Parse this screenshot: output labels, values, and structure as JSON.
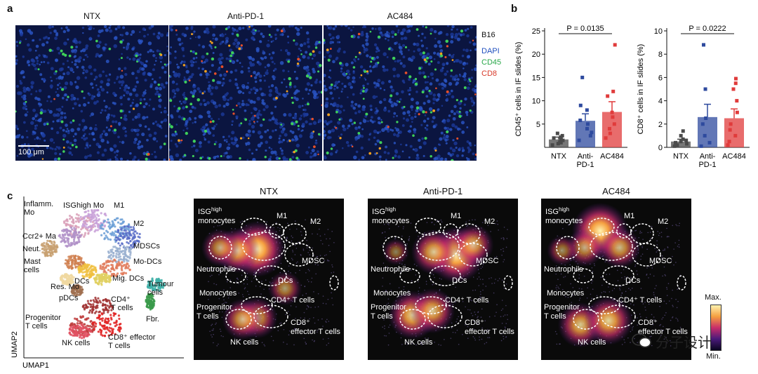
{
  "panels": {
    "a": "a",
    "b": "b",
    "c": "c"
  },
  "panel_a": {
    "conditions": [
      "NTX",
      "Anti-PD-1",
      "AC484"
    ],
    "scale_bar": "100 μm",
    "legend": {
      "title": "B16",
      "channels": [
        {
          "label": "DAPI",
          "color": "#1f4fbf"
        },
        {
          "label": "CD45",
          "color": "#2aa84a"
        },
        {
          "label": "CD8",
          "color": "#d83a2a"
        }
      ]
    }
  },
  "chart_data": [
    {
      "type": "bar",
      "categories": [
        "NTX",
        "Anti-PD-1",
        "AC484"
      ],
      "category_lines": [
        [
          "NTX"
        ],
        [
          "Anti-",
          "PD-1"
        ],
        [
          "AC484"
        ]
      ],
      "values": [
        1.7,
        5.7,
        7.6
      ],
      "errors": [
        0.5,
        1.5,
        2.2
      ],
      "points": [
        [
          0.5,
          0.8,
          1.0,
          1.2,
          1.5,
          1.8,
          2.0,
          2.2,
          2.5,
          3.0
        ],
        [
          1.5,
          2.5,
          3.2,
          4.0,
          5.0,
          5.8,
          8.0,
          9.0,
          15.0
        ],
        [
          2.0,
          3.0,
          4.0,
          5.0,
          6.5,
          7.5,
          11.0,
          12.0,
          22.0
        ]
      ],
      "colors": [
        "#4a4a4a",
        "#2e4a9e",
        "#e03b3b"
      ],
      "ylabel": "CD45⁺ cells in IF slides (%)",
      "yticks": [
        5,
        10,
        15,
        20,
        25
      ],
      "ylim": [
        0,
        25
      ],
      "annotation": "P = 0.0135"
    },
    {
      "type": "bar",
      "categories": [
        "NTX",
        "Anti-PD-1",
        "AC484"
      ],
      "category_lines": [
        [
          "NTX"
        ],
        [
          "Anti-",
          "PD-1"
        ],
        [
          "AC484"
        ]
      ],
      "values": [
        0.5,
        2.6,
        2.5
      ],
      "errors": [
        0.2,
        1.1,
        0.8
      ],
      "points": [
        [
          0.1,
          0.2,
          0.3,
          0.4,
          0.5,
          0.6,
          0.7,
          1.0,
          1.4
        ],
        [
          0.1,
          0.4,
          1.0,
          2.0,
          2.5,
          5.0,
          8.8
        ],
        [
          0.2,
          0.5,
          1.0,
          1.5,
          2.0,
          3.0,
          4.0,
          5.0,
          5.5,
          5.9
        ]
      ],
      "colors": [
        "#4a4a4a",
        "#2e4a9e",
        "#e03b3b"
      ],
      "ylabel": "CD8⁺ cells in IF slides (%)",
      "yticks": [
        0,
        2,
        4,
        6,
        8,
        10
      ],
      "ylim": [
        0,
        10
      ],
      "annotation": "P = 0.0222"
    }
  ],
  "panel_c": {
    "clusters": [
      {
        "label": "Inflamm.\nMo",
        "color": "#d9a0b8"
      },
      {
        "label": "ISGhigh Mo",
        "color": "#c8a0d8"
      },
      {
        "label": "M1",
        "color": "#6b9fd6"
      },
      {
        "label": "M2",
        "color": "#5a6fc8"
      },
      {
        "label": "Ccr2+ Ma",
        "color": "#b090c8"
      },
      {
        "label": "Neut.",
        "color": "#c8a070"
      },
      {
        "label": "MDSCs",
        "color": "#9ab0d0"
      },
      {
        "label": "Mast\ncells",
        "color": "#d08050"
      },
      {
        "label": "Mo-DCs",
        "color": "#e07a5a"
      },
      {
        "label": "DCs",
        "color": "#f0c040"
      },
      {
        "label": "Mig. DCs",
        "color": "#e0d060"
      },
      {
        "label": "Res. Mo",
        "color": "#f0d8a0"
      },
      {
        "label": "pDCs",
        "color": "#a07050"
      },
      {
        "label": "Tumour\ncells",
        "color": "#40b0a8"
      },
      {
        "label": "CD4⁺\nT cells",
        "color": "#a03030"
      },
      {
        "label": "Fbr.",
        "color": "#3a9a4a"
      },
      {
        "label": "Progenitor\nT cells",
        "color": "#c04040"
      },
      {
        "label": "NK cells",
        "color": "#e05060"
      },
      {
        "label": "CD8⁺ effector\nT cells",
        "color": "#e02020"
      }
    ],
    "axis_x": "UMAP1",
    "axis_y": "UMAP2",
    "density_titles": [
      "NTX",
      "Anti-PD-1",
      "AC484"
    ],
    "density_labels": {
      "isg": "ISG",
      "isg_sup": "high",
      "monocytes": "monocytes",
      "m1": "M1",
      "m2": "M2",
      "neutrophils": "Neutrophils",
      "mdsc": "MDSC",
      "dcs": "DCs",
      "monocytes2": "Monocytes",
      "cd4": "CD4⁺ T cells",
      "progenitor": "Progenitor",
      "tcells": "T cells",
      "cd8": "CD8⁺",
      "effector": "effector T cells",
      "nk": "NK cells"
    },
    "colorbar": {
      "max": "Max.",
      "min": "Min."
    }
  },
  "watermark": "分子设计"
}
